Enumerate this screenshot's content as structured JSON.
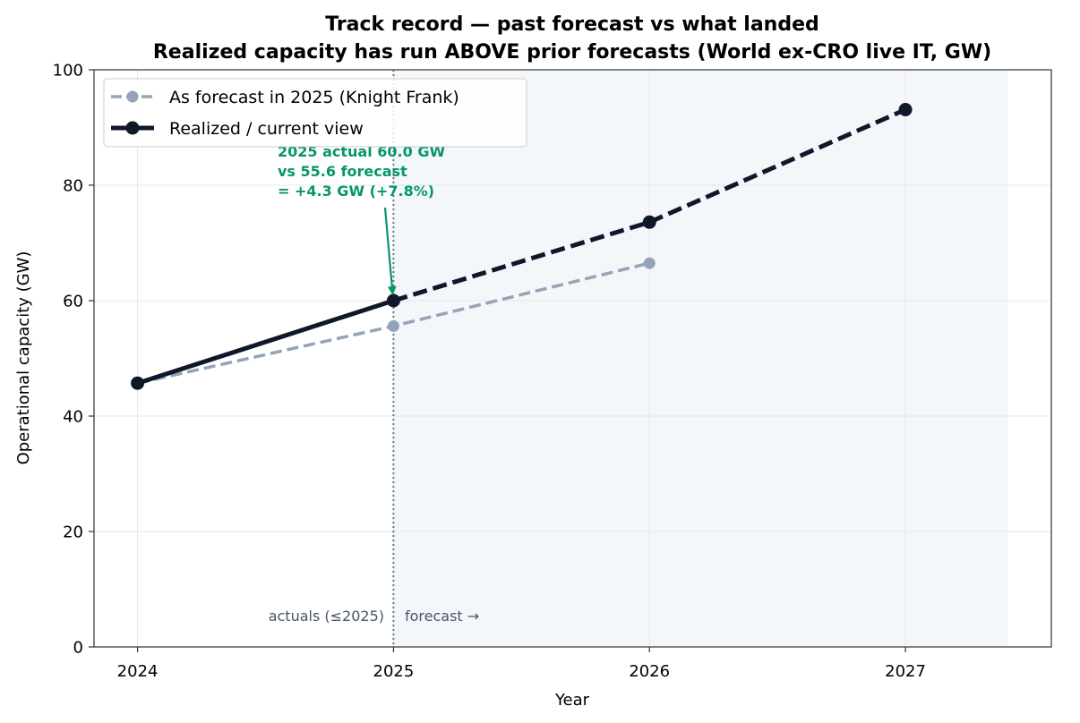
{
  "chart_data": {
    "type": "line",
    "title": "Track record — past forecast vs what landed",
    "subtitle": "Realized capacity has run ABOVE prior forecasts (World ex-CRO live IT, GW)",
    "xlabel": "Year",
    "ylabel": "Operational capacity (GW)",
    "x_ticks": [
      "2024",
      "2025",
      "2026",
      "2027"
    ],
    "y_ticks": [
      "0",
      "20",
      "40",
      "60",
      "80",
      "100"
    ],
    "xlim": [
      2023.83,
      2027.57
    ],
    "ylim": [
      0,
      100
    ],
    "grid": true,
    "legend_position": "upper-left",
    "forecast_shade_from": 2025,
    "forecast_shade_to": 2027.4,
    "divider_x": 2025,
    "series": [
      {
        "name": "As forecast in 2025 (Knight Frank)",
        "color": "#94a3b8",
        "style": "dashed",
        "x": [
          2024,
          2025,
          2026
        ],
        "y": [
          45.7,
          55.6,
          66.5
        ]
      },
      {
        "name": "Realized / current view",
        "color": "#0f172a",
        "style": "solid-then-dashed",
        "solid_until": 2025,
        "x": [
          2024,
          2025,
          2026,
          2027
        ],
        "y": [
          45.7,
          60.0,
          73.6,
          93.1
        ]
      }
    ],
    "annotation": {
      "lines": [
        "2025 actual 60.0 GW",
        "vs 55.6 forecast",
        "= +4.3 GW (+7.8%)"
      ],
      "color": "#059669",
      "points_to_x": 2025,
      "points_to_y": 60.0
    },
    "region_labels": {
      "left": "actuals (≤2025)",
      "right": "forecast →"
    }
  }
}
